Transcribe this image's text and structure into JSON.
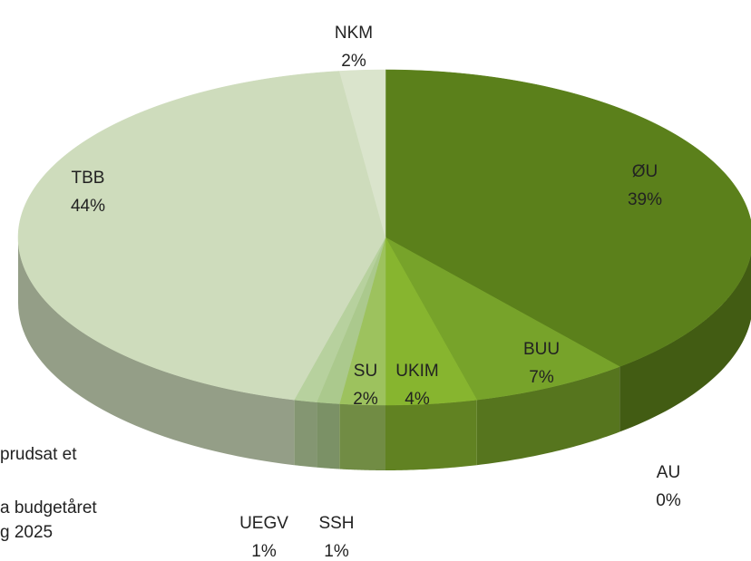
{
  "chart_data": {
    "type": "pie",
    "categories": [
      "ØU",
      "AU",
      "BUU",
      "UKIM",
      "SU",
      "SSH",
      "UEGV",
      "TBB",
      "NKM"
    ],
    "values": [
      39,
      0,
      7,
      4,
      2,
      1,
      1,
      44,
      2
    ],
    "value_labels": [
      "39%",
      "0%",
      "7%",
      "4%",
      "2%",
      "1%",
      "1%",
      "44%",
      "2%"
    ],
    "colors": [
      "#5b801b",
      "#3f5a12",
      "#77a32a",
      "#87b52f",
      "#9dc25e",
      "#abc98d",
      "#b7d19e",
      "#cedcbc",
      "#dae4cc"
    ],
    "notes": [
      "prudsat et",
      "a budgetåret",
      "g 2025"
    ]
  }
}
